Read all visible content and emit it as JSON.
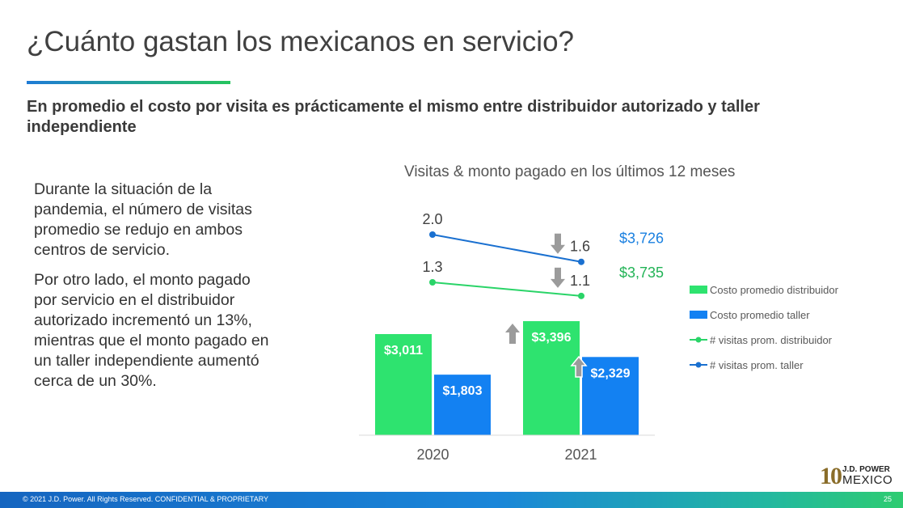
{
  "title": "¿Cuánto gastan los mexicanos en servicio?",
  "subtitle": "En promedio el costo por visita es prácticamente el mismo entre distribuidor autorizado y taller independiente",
  "body": {
    "p1": "Durante la situación de la pandemia, el número de visitas promedio se redujo en ambos centros de servicio.",
    "p2": "Por otro lado, el monto pagado por servicio en el distribuidor autorizado incrementó un 13%, mientras que el monto pagado en un taller independiente aumentó cerca de un 30%."
  },
  "colors": {
    "green": "#2ee36f",
    "blue": "#1381f2",
    "green_line": "#2ad468",
    "blue_line": "#1a70d0",
    "green_text": "#22b356",
    "blue_text": "#1a80e0",
    "arrow": "#9b9b9b"
  },
  "chart_data": {
    "type": "bar",
    "title": "Visitas & monto pagado en los últimos 12 meses",
    "categories": [
      "2020",
      "2021"
    ],
    "bar_series": [
      {
        "name": "Costo promedio distribuidor",
        "values": [
          3011,
          3396
        ],
        "labels": [
          "$3,011",
          "$3,396"
        ]
      },
      {
        "name": "Costo promedio taller",
        "values": [
          1803,
          2329
        ],
        "labels": [
          "$1,803",
          "$2,329"
        ]
      }
    ],
    "line_series": [
      {
        "name": "# visitas prom. distribuidor",
        "values": [
          1.3,
          1.1
        ],
        "labels": [
          "1.3",
          "1.1"
        ],
        "end_amount": "$3,735"
      },
      {
        "name": "# visitas prom. taller",
        "values": [
          2.0,
          1.6
        ],
        "labels": [
          "2.0",
          "1.6"
        ],
        "end_amount": "$3,726"
      }
    ],
    "legend_position": "right",
    "grid": false
  },
  "footer": {
    "copyright": "© 2021 J.D. Power. All Rights Reserved. CONFIDENTIAL & PROPRIETARY",
    "page": "25"
  },
  "logo": {
    "number": "10",
    "brand": "J.D. POWER",
    "region": "MEXICO"
  }
}
